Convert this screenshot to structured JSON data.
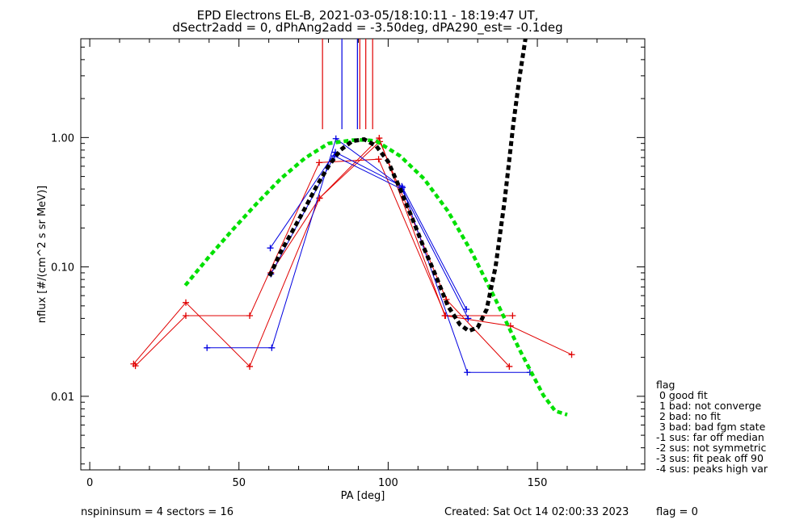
{
  "chart_data": {
    "type": "line",
    "title": "EPD Electrons EL-B, 2021-03-05/18:10:11 - 18:19:47 UT,",
    "subtitle": "dSectr2add = 0, dPhAng2add = -3.50deg, dPA290_est=  -0.1deg",
    "xlabel": "PA [deg]",
    "ylabel": "nflux [#/(cm^2 s sr MeV)]",
    "xlim": [
      -3,
      186
    ],
    "ylim": [
      0.0027,
      5.8
    ],
    "y_scale": "log",
    "x_ticks": [
      0,
      50,
      100,
      150
    ],
    "x_tick_labels": [
      "0",
      "50",
      "100",
      "150"
    ],
    "y_ticks": [
      0.01,
      0.1,
      1.0
    ],
    "y_tick_labels": [
      "0.01",
      "0.10",
      "1.00"
    ],
    "grid": false,
    "colors": {
      "red": "#e00000",
      "blue": "#0000e0",
      "green": "#00e000",
      "black": "#000000"
    },
    "series": [
      {
        "color": "red",
        "style": "plus-line",
        "x": [
          14.7,
          32.2,
          53.6,
          77.0,
          97.0,
          119.0,
          141.0,
          161.5
        ],
        "y": [
          0.0178,
          0.053,
          0.017,
          0.34,
          0.99,
          0.042,
          0.035,
          0.021
        ]
      },
      {
        "color": "red",
        "style": "plus-line",
        "x": [
          15.3,
          32.2,
          53.6,
          76.9,
          96.8,
          119.2,
          141.7
        ],
        "y": [
          0.0172,
          0.042,
          0.042,
          0.64,
          0.68,
          0.042,
          0.042
        ]
      },
      {
        "color": "red",
        "style": "plus-line",
        "x": [
          60.7,
          77.0,
          97.2,
          119.5,
          140.6
        ],
        "y": [
          0.09,
          0.34,
          0.93,
          0.056,
          0.017
        ]
      },
      {
        "color": "blue",
        "style": "plus-line",
        "x": [
          39.3,
          61.0,
          82.5,
          104.8,
          126.5,
          147.5
        ],
        "y": [
          0.0237,
          0.0237,
          0.98,
          0.41,
          0.0153,
          0.0153
        ]
      },
      {
        "color": "blue",
        "style": "plus-line",
        "x": [
          60.5,
          82.3,
          104.6,
          126.2
        ],
        "y": [
          0.14,
          0.77,
          0.42,
          0.047
        ]
      },
      {
        "color": "blue",
        "style": "plus-line",
        "x": [
          60.7,
          82.0,
          104.5,
          126.8
        ],
        "y": [
          0.088,
          0.72,
          0.4,
          0.04
        ]
      },
      {
        "color": "green",
        "style": "dashed",
        "width": 4.5,
        "x": [
          32,
          40,
          48,
          56,
          64,
          72,
          80,
          88,
          92,
          96,
          104,
          112,
          120,
          128,
          136,
          144,
          152,
          156,
          160
        ],
        "y": [
          0.072,
          0.12,
          0.195,
          0.31,
          0.48,
          0.69,
          0.9,
          0.955,
          0.96,
          0.94,
          0.72,
          0.48,
          0.27,
          0.13,
          0.056,
          0.023,
          0.0102,
          0.0077,
          0.0072
        ]
      },
      {
        "color": "black",
        "style": "dashed",
        "width": 5,
        "x": [
          60.3,
          64,
          68,
          72,
          76,
          80,
          84,
          88,
          92,
          96,
          100,
          104,
          108,
          112,
          116,
          120,
          124,
          127,
          130,
          133,
          136,
          139,
          142,
          144,
          146
        ],
        "y": [
          0.085,
          0.13,
          0.19,
          0.28,
          0.42,
          0.6,
          0.8,
          0.94,
          0.97,
          0.86,
          0.65,
          0.4,
          0.24,
          0.14,
          0.085,
          0.05,
          0.036,
          0.032,
          0.034,
          0.047,
          0.1,
          0.32,
          1.3,
          2.9,
          5.8
        ]
      }
    ],
    "vertical_markers": [
      {
        "color": "red",
        "x": 78.0
      },
      {
        "color": "blue",
        "x": 84.5
      },
      {
        "color": "blue",
        "x": 89.7
      },
      {
        "color": "red",
        "x": 90.5
      },
      {
        "color": "red",
        "x": 92.5
      },
      {
        "color": "red",
        "x": 94.8
      }
    ],
    "legend": {
      "placement": "right-bottom",
      "title": "flag",
      "entries": [
        " 0 good fit",
        " 1 bad: not converge",
        " 2 bad: no fit",
        " 3 bad: bad fgm state",
        "-1 sus: far off median",
        "-2 sus: not symmetric",
        "-3 sus: fit peak off 90",
        "-4 sus: peaks high var"
      ]
    }
  },
  "footer": {
    "left": "nspininsum =  4  sectors = 16",
    "created": "Created: Sat Oct 14 02:00:33 2023",
    "flag": "flag = 0"
  }
}
